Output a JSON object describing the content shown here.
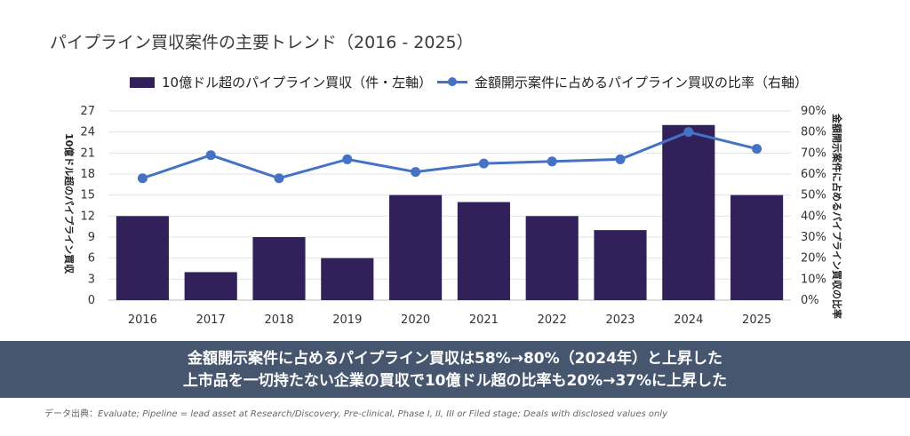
{
  "title": "パイプライン買収案件の主要トレンド（2016 - 2025）",
  "legend": {
    "bar": "10億ドル超のパイプライン買収（件・左軸）",
    "line": "金額開示案件に占めるパイプライン買収の比率（右軸）"
  },
  "chart_data": {
    "type": "bar",
    "categories": [
      "2016",
      "2017",
      "2018",
      "2019",
      "2020",
      "2021",
      "2022",
      "2023",
      "2024",
      "2025"
    ],
    "series": [
      {
        "name": "10億ドル超のパイプライン買収（件・左軸）",
        "type": "bar",
        "axis": "left",
        "values": [
          12,
          4,
          9,
          6,
          15,
          14,
          12,
          10,
          25,
          15
        ]
      },
      {
        "name": "金額開示案件に占めるパイプライン買収の比率（右軸）",
        "type": "line",
        "axis": "right",
        "values": [
          58,
          69,
          58,
          67,
          61,
          65,
          66,
          67,
          80,
          72
        ]
      }
    ],
    "ylabel": "10億ドル超のパイプライン買収",
    "y2label": "金額開示案件に占めるパイプライン買収の比率",
    "ylim": [
      0,
      27
    ],
    "yticks": [
      "0",
      "3",
      "6",
      "9",
      "12",
      "15",
      "18",
      "21",
      "24",
      "27"
    ],
    "y2lim": [
      0,
      90
    ],
    "y2ticks": [
      "0%",
      "10%",
      "20%",
      "30%",
      "40%",
      "50%",
      "60%",
      "70%",
      "80%",
      "90%"
    ],
    "grid": true,
    "legend_position": "top",
    "colors": {
      "bar": "#32205a",
      "line": "#4472c4"
    }
  },
  "banner": {
    "line1": "金額開示案件に占めるパイプライン買収は58%→80%（2024年）と上昇した",
    "line2": "上市品を一切持たない企業の買収で10億ドル超の比率も20%→37%に上昇した"
  },
  "source": {
    "label": "データ出典：",
    "text": "Evaluate; Pipeline = lead asset at Research/Discovery, Pre-clinical, Phase I, II, III or Filed stage; Deals with disclosed values only"
  },
  "colors": {
    "banner_bg": "#46566e",
    "bar": "#32205a",
    "line": "#4472c4"
  }
}
